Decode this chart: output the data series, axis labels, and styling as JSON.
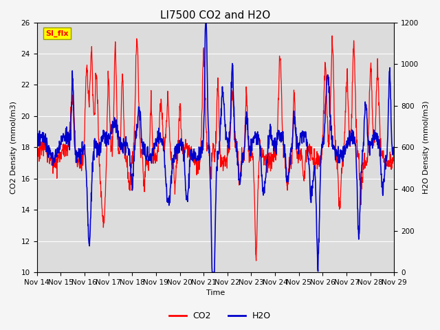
{
  "title": "LI7500 CO2 and H2O",
  "xlabel": "Time",
  "ylabel_left": "CO2 Density (mmol/m3)",
  "ylabel_right": "H2O Density (mmol/m3)",
  "ylim_left": [
    10,
    26
  ],
  "ylim_right": [
    0,
    1200
  ],
  "yticks_left": [
    10,
    12,
    14,
    16,
    18,
    20,
    22,
    24,
    26
  ],
  "yticks_right": [
    0,
    200,
    400,
    600,
    800,
    1000,
    1200
  ],
  "xtick_labels": [
    "Nov 14",
    "Nov 15",
    "Nov 16",
    "Nov 17",
    "Nov 18",
    "Nov 19",
    "Nov 20",
    "Nov 21",
    "Nov 22",
    "Nov 23",
    "Nov 24",
    "Nov 25",
    "Nov 26",
    "Nov 27",
    "Nov 28",
    "Nov 29"
  ],
  "co2_color": "#FF0000",
  "h2o_color": "#0000CC",
  "annotation_text": "SI_flx",
  "annotation_bg": "#FFFF00",
  "annotation_border": "#999900",
  "plot_bg": "#DCDCDC",
  "fig_bg": "#F5F5F5",
  "grid_color": "#FFFFFF",
  "title_fontsize": 11,
  "label_fontsize": 8,
  "tick_fontsize": 7.5,
  "legend_fontsize": 9
}
